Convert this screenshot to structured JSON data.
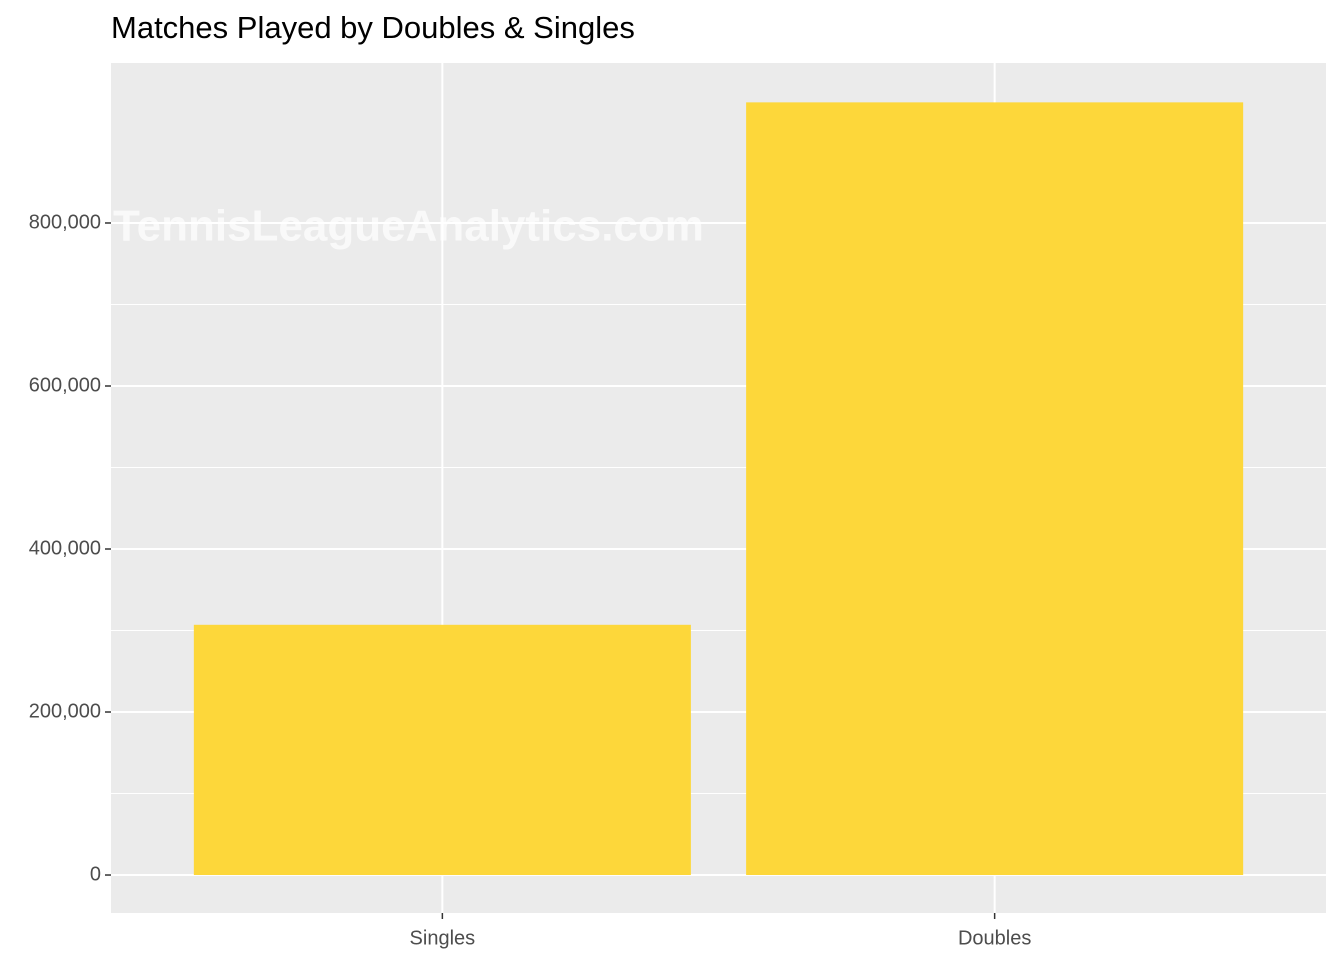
{
  "chart_data": {
    "type": "bar",
    "title": "Matches Played by Doubles & Singles",
    "annotation": "TennisLeagueAnalytics.com",
    "categories": [
      "Singles",
      "Doubles"
    ],
    "values": [
      307000,
      948000
    ],
    "color": "#fdd73a",
    "ylim": [
      -46600,
      996300
    ],
    "yticks": [
      0,
      {
        "value": 200000,
        "label": "200,000"
      },
      {
        "value": 400000,
        "label": "400,000"
      },
      {
        "value": 600000,
        "label": "600,000"
      },
      {
        "value": 800000,
        "label": "800,000"
      }
    ],
    "grid": true
  }
}
